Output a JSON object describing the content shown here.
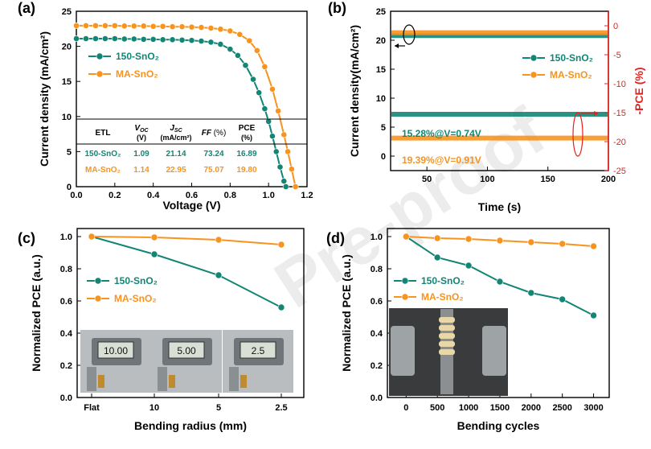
{
  "colors": {
    "teal": "#138575",
    "orange": "#f7931e",
    "red": "#e8211c",
    "axis": "#000000"
  },
  "watermark": "Pre-proof",
  "chart_data": [
    {
      "panel": "(a)",
      "type": "line",
      "xlabel": "Voltage (V)",
      "ylabel": "Current density (mA/cm²)",
      "xlim": [
        0,
        1.2
      ],
      "ylim": [
        0,
        25
      ],
      "xticks": [
        "0.0",
        "0.2",
        "0.4",
        "0.6",
        "0.8",
        "1.0",
        "1.2"
      ],
      "yticks": [
        "0",
        "5",
        "10",
        "15",
        "20",
        "25"
      ],
      "series": [
        {
          "name": "150-SnO₂",
          "color": "teal",
          "marker": "circle",
          "x": [
            0,
            0.05,
            0.1,
            0.15,
            0.2,
            0.25,
            0.3,
            0.35,
            0.4,
            0.45,
            0.5,
            0.55,
            0.6,
            0.65,
            0.7,
            0.75,
            0.8,
            0.84,
            0.88,
            0.92,
            0.95,
            0.98,
            1.0,
            1.02,
            1.04,
            1.06,
            1.08,
            1.09
          ],
          "y": [
            21.1,
            21.1,
            21.1,
            21.1,
            21.1,
            21.05,
            21.05,
            21.0,
            21.0,
            20.95,
            20.95,
            20.9,
            20.85,
            20.75,
            20.6,
            20.3,
            19.6,
            18.7,
            17.3,
            15.3,
            13.4,
            11.1,
            9.3,
            7.2,
            5.0,
            2.8,
            0.8,
            0
          ]
        },
        {
          "name": "MA-SnO₂",
          "color": "orange",
          "marker": "circle",
          "x": [
            0,
            0.05,
            0.1,
            0.15,
            0.2,
            0.25,
            0.3,
            0.35,
            0.4,
            0.45,
            0.5,
            0.55,
            0.6,
            0.65,
            0.7,
            0.75,
            0.8,
            0.85,
            0.9,
            0.94,
            0.98,
            1.02,
            1.05,
            1.08,
            1.1,
            1.12,
            1.14
          ],
          "y": [
            22.95,
            22.95,
            22.95,
            22.95,
            22.95,
            22.9,
            22.9,
            22.9,
            22.85,
            22.85,
            22.8,
            22.8,
            22.75,
            22.7,
            22.6,
            22.45,
            22.2,
            21.7,
            20.8,
            19.4,
            17.1,
            13.9,
            10.8,
            7.4,
            5.0,
            2.5,
            0
          ]
        }
      ],
      "table": {
        "headers": [
          "ETL",
          "V_OC (V)",
          "J_SC (mA/cm²)",
          "FF (%)",
          "PCE (%)"
        ],
        "header_parts": {
          "etl": "ETL",
          "voc": {
            "sym": "V",
            "sub": "OC",
            "unit": "(V)"
          },
          "jsc": {
            "sym": "J",
            "sub": "SC",
            "unit": "(mA/cm²)"
          },
          "ff": {
            "sym": "FF",
            "unit": "(%)"
          },
          "pce": {
            "sym": "PCE",
            "unit": "(%)"
          }
        },
        "rows": [
          {
            "etl": "150-SnO₂",
            "voc": "1.09",
            "jsc": "21.14",
            "ff": "73.24",
            "pce": "16.89",
            "color": "teal"
          },
          {
            "etl": "MA-SnO₂",
            "voc": "1.14",
            "jsc": "22.95",
            "ff": "75.07",
            "pce": "19.80",
            "color": "orange"
          }
        ]
      }
    },
    {
      "panel": "(b)",
      "type": "line",
      "xlabel": "Time (s)",
      "ylabel": "Current density(mA/cm²)",
      "ylabel_right": "-PCE (%)",
      "xlim": [
        20,
        200
      ],
      "ylim": [
        -2.5,
        25
      ],
      "ylim_right": [
        -25,
        2.5
      ],
      "xticks": [
        "50",
        "100",
        "150",
        "200"
      ],
      "yticks": [
        "0",
        "5",
        "10",
        "15",
        "20",
        "25"
      ],
      "yticks_right": [
        "0",
        "-5",
        "-10",
        "-15",
        "-20",
        "-25"
      ],
      "series": [
        {
          "name": "150-SnO₂",
          "color": "teal",
          "axis": "left",
          "y_constant": 20.8
        },
        {
          "name": "MA-SnO₂",
          "color": "orange",
          "axis": "left",
          "y_constant": 21.3
        },
        {
          "name": "150-SnO₂",
          "color": "teal",
          "axis": "right",
          "y_constant": -15.28
        },
        {
          "name": "MA-SnO₂",
          "color": "orange",
          "axis": "right",
          "y_constant": -19.39
        }
      ],
      "annotations": [
        "15.28%@V=0.74V",
        "19.39%@V=0.91V"
      ]
    },
    {
      "panel": "(c)",
      "type": "line",
      "xlabel": "Bending radius (mm)",
      "ylabel": "Normalized PCE (a.u.)",
      "categories": [
        "Flat",
        "10",
        "5",
        "2.5"
      ],
      "ylim": [
        0,
        1.05
      ],
      "yticks": [
        "0.0",
        "0.2",
        "0.4",
        "0.6",
        "0.8",
        "1.0"
      ],
      "series": [
        {
          "name": "150-SnO₂",
          "color": "teal",
          "values": [
            1.0,
            0.89,
            0.76,
            0.56
          ]
        },
        {
          "name": "MA-SnO₂",
          "color": "orange",
          "values": [
            1.0,
            0.995,
            0.98,
            0.95
          ]
        }
      ],
      "photo_readouts": [
        "10.00",
        "5.00",
        "2.5"
      ]
    },
    {
      "panel": "(d)",
      "type": "line",
      "xlabel": "Bending cycles",
      "ylabel": "Normalized PCE (a.u.)",
      "x": [
        0,
        500,
        1000,
        1500,
        2000,
        2500,
        3000
      ],
      "xlim": [
        -300,
        3250
      ],
      "ylim": [
        0,
        1.05
      ],
      "xticks": [
        "0",
        "500",
        "1000",
        "1500",
        "2000",
        "2500",
        "3000"
      ],
      "yticks": [
        "0.0",
        "0.2",
        "0.4",
        "0.6",
        "0.8",
        "1.0"
      ],
      "series": [
        {
          "name": "150-SnO₂",
          "color": "teal",
          "values": [
            1.0,
            0.87,
            0.82,
            0.72,
            0.65,
            0.61,
            0.51
          ]
        },
        {
          "name": "MA-SnO₂",
          "color": "orange",
          "values": [
            1.0,
            0.99,
            0.985,
            0.975,
            0.965,
            0.955,
            0.94
          ]
        }
      ]
    }
  ]
}
